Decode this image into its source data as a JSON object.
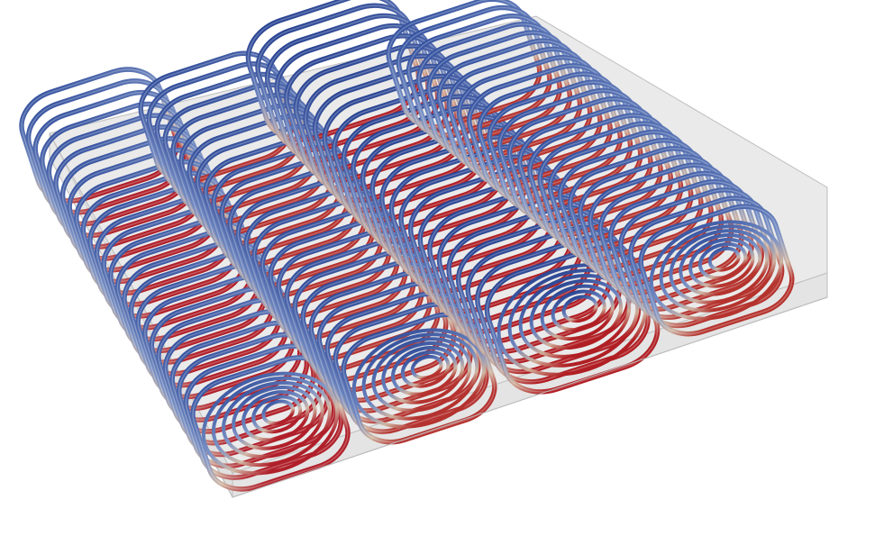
{
  "scene": {
    "description_free": true,
    "colormap": {
      "low": "#2f4c9c",
      "mid": "#c9cdd6",
      "high": "#b0202a"
    },
    "box_colors": {
      "face": "#d9d9d9",
      "edge": "#bdbdbd"
    },
    "roll_count": 4
  }
}
